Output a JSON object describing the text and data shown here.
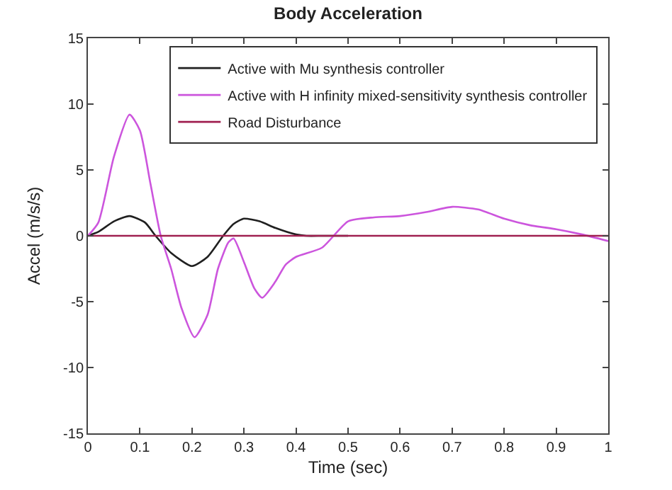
{
  "chart_data": {
    "type": "line",
    "title": "Body Acceleration",
    "xlabel": "Time (sec)",
    "ylabel": "Accel (m/s/s)",
    "xlim": [
      0,
      1
    ],
    "ylim": [
      -15,
      15
    ],
    "xticks": [
      0,
      0.1,
      0.2,
      0.3,
      0.4,
      0.5,
      0.6,
      0.7,
      0.8,
      0.9,
      1
    ],
    "yticks": [
      -15,
      -10,
      -5,
      0,
      5,
      10,
      15
    ],
    "grid": false,
    "legend": "top right",
    "marker": "none",
    "line_style": "solid",
    "series": [
      {
        "name": "Active with Mu synthesis controller",
        "color": "#202020",
        "x": [
          0,
          0.02,
          0.05,
          0.08,
          0.11,
          0.13,
          0.16,
          0.2,
          0.23,
          0.26,
          0.28,
          0.3,
          0.33,
          0.36,
          0.4,
          0.42,
          0.45,
          0.5
        ],
        "values": [
          0,
          0.3,
          1.1,
          1.5,
          1.0,
          0,
          -1.3,
          -2.3,
          -1.6,
          0,
          0.9,
          1.3,
          1.1,
          0.6,
          0.1,
          0,
          0,
          0
        ]
      },
      {
        "name": "Active with H infinity mixed-sensitivity synthesis controller",
        "color": "#cc55dd",
        "x": [
          0,
          0.02,
          0.05,
          0.08,
          0.1,
          0.12,
          0.14,
          0.16,
          0.18,
          0.205,
          0.23,
          0.25,
          0.27,
          0.28,
          0.3,
          0.32,
          0.335,
          0.36,
          0.38,
          0.4,
          0.45,
          0.5,
          0.55,
          0.6,
          0.65,
          0.7,
          0.75,
          0.8,
          0.85,
          0.9,
          0.95,
          1
        ],
        "values": [
          0,
          1,
          6,
          9.2,
          8,
          4,
          0,
          -2.5,
          -5.5,
          -7.7,
          -6,
          -2.5,
          -0.5,
          -0.2,
          -2,
          -4,
          -4.7,
          -3.5,
          -2.2,
          -1.6,
          -0.9,
          1.1,
          1.4,
          1.5,
          1.8,
          2.2,
          2.0,
          1.3,
          0.8,
          0.5,
          0.1,
          -0.4
        ]
      },
      {
        "name": "Road Disturbance",
        "color": "#a02050",
        "x": [
          0,
          0.5,
          1
        ],
        "values": [
          0,
          0,
          0
        ]
      }
    ]
  }
}
